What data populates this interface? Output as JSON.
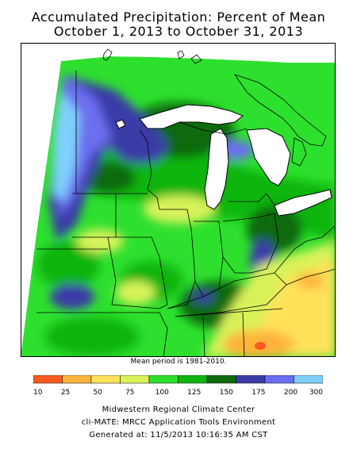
{
  "title": {
    "line1": "Accumulated Precipitation: Percent of Mean",
    "line2": "October 1, 2013 to October 31, 2013"
  },
  "map": {
    "region": "Midwestern United States",
    "note": "Mean period is 1981-2010."
  },
  "legend": {
    "ticks": [
      "10",
      "25",
      "50",
      "75",
      "100",
      "125",
      "150",
      "175",
      "200",
      "300"
    ],
    "colors": [
      "#ff5a1f",
      "#ffb43a",
      "#ffe25a",
      "#d8f25a",
      "#2ee02e",
      "#11b511",
      "#0d6b0d",
      "#3a3aa8",
      "#6a6ef0",
      "#7fd0ff"
    ]
  },
  "footer": {
    "line1": "Midwestern Regional Climate Center",
    "line2": "cli-MATE: MRCC Application Tools Environment",
    "line3": "Generated at: 11/5/2013 10:16:35 AM CST"
  }
}
